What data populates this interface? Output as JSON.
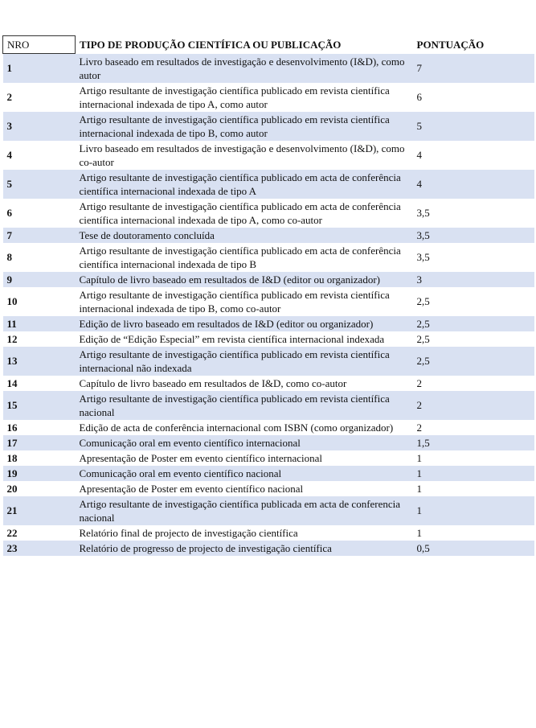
{
  "table": {
    "headers": [
      "NRO",
      "TIPO DE PRODUÇÃO CIENTÍFICA OU PUBLICAÇÃO",
      "PONTUAÇÃO"
    ],
    "rows": [
      [
        "1",
        "Livro baseado em resultados de investigação e desenvolvimento (I&D), como autor",
        "7"
      ],
      [
        "2",
        "Artigo resultante de investigação científica publicado em revista científica internacional indexada de tipo A, como autor",
        "6"
      ],
      [
        "3",
        "Artigo resultante de investigação científica publicado em revista científica internacional indexada de tipo B, como autor",
        "5"
      ],
      [
        "4",
        "Livro baseado em resultados de investigação e desenvolvimento (I&D), como co-autor",
        "4"
      ],
      [
        "5",
        "Artigo resultante de investigação científica publicado em acta de conferência científica internacional indexada de tipo A",
        "4"
      ],
      [
        "6",
        "Artigo resultante de investigação científica publicado em acta de conferência científica internacional indexada de tipo A, como co-autor",
        "3,5"
      ],
      [
        "7",
        "Tese de doutoramento concluída",
        "3,5"
      ],
      [
        "8",
        "Artigo resultante de investigação científica publicado em acta de conferência científica internacional indexada de tipo B",
        "3,5"
      ],
      [
        "9",
        "Capítulo de livro baseado em resultados de I&D (editor ou organizador)",
        "3"
      ],
      [
        "10",
        "Artigo resultante de investigação científica publicado em revista científica internacional indexada de tipo B, como co-autor",
        "2,5"
      ],
      [
        "11",
        "Edição de livro baseado em resultados de I&D (editor ou organizador)",
        "2,5"
      ],
      [
        "12",
        "Edição de “Edição Especial” em revista científica internacional indexada",
        "2,5"
      ],
      [
        "13",
        "Artigo resultante de investigação científica publicado em revista científica internacional não indexada",
        "2,5"
      ],
      [
        "14",
        "Capítulo de livro baseado em resultados de I&D, como co-autor",
        "2"
      ],
      [
        "15",
        "Artigo resultante de investigação científica publicado em revista científica nacional",
        "2"
      ],
      [
        "16",
        "Edição de acta de conferência internacional com ISBN (como organizador)",
        "2"
      ],
      [
        "17",
        "Comunicação oral em evento científico internacional",
        "1,5"
      ],
      [
        "18",
        "Apresentação de Poster em evento científico internacional",
        "1"
      ],
      [
        "19",
        "Comunicação oral em evento científico nacional",
        "1"
      ],
      [
        "20",
        "Apresentação de Poster em evento científico nacional",
        "1"
      ],
      [
        "21",
        "Artigo resultante de investigação científica publicada em acta de conferencia nacional",
        "1"
      ],
      [
        "22",
        "Relatório final de projecto de investigação científica",
        "1"
      ],
      [
        "23",
        "Relatório de progresso de projecto de investigação científica",
        "0,5"
      ]
    ]
  }
}
